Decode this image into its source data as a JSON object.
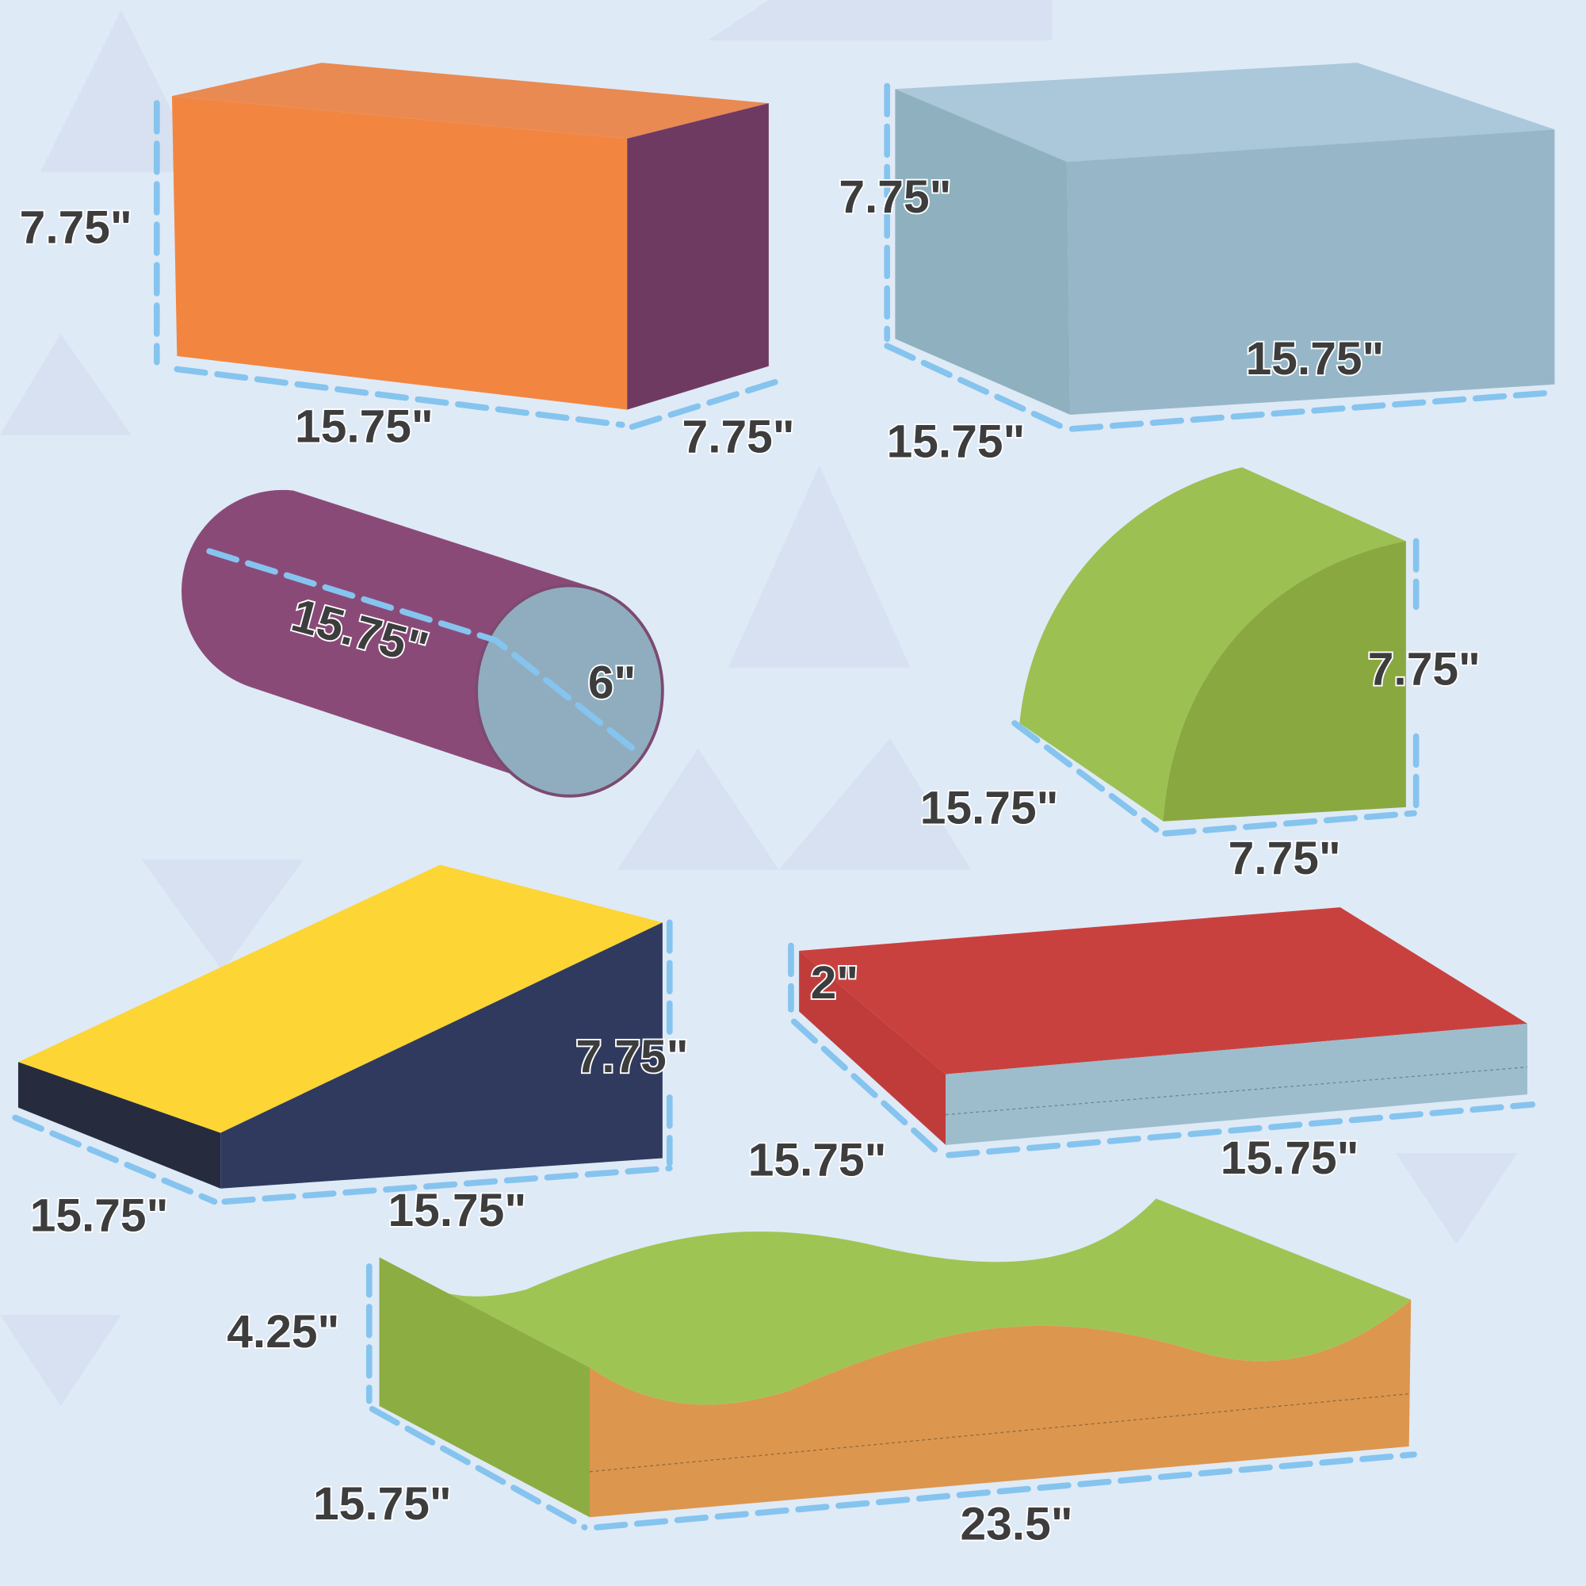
{
  "colors": {
    "background": "#dfeaf7",
    "dimension_line": "#85c4ee",
    "orange": "#f28640",
    "purple": "#6f3a62",
    "light_blue": "#97b7c8",
    "magenta": "#8a4a78",
    "green": "#8db043",
    "yellow": "#fdd535",
    "navy": "#2f3a5e",
    "red": "#c9413f"
  },
  "pieces": [
    {
      "shape": "rectangular-block",
      "labels": [
        "7.75\"",
        "15.75\"",
        "7.75\""
      ]
    },
    {
      "shape": "square-block",
      "labels": [
        "7.75\"",
        "15.75\"",
        "15.75\""
      ]
    },
    {
      "shape": "cylinder",
      "labels": [
        "15.75\"",
        "6\""
      ]
    },
    {
      "shape": "quarter-round",
      "labels": [
        "7.75\"",
        "15.75\"",
        "7.75\""
      ]
    },
    {
      "shape": "wedge-ramp",
      "labels": [
        "7.75\"",
        "15.75\"",
        "15.75\""
      ]
    },
    {
      "shape": "flat-mat",
      "labels": [
        "2\"",
        "15.75\"",
        "15.75\""
      ]
    },
    {
      "shape": "wave-block",
      "labels": [
        "4.25\"",
        "15.75\"",
        "23.5\""
      ]
    }
  ]
}
